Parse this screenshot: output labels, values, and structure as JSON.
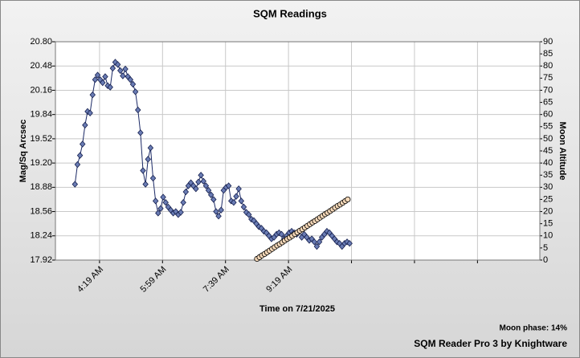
{
  "chart_data": {
    "type": "line",
    "title": "SQM Readings",
    "xlabel": "Time on 7/21/2025",
    "ylabel": "Mag/Sq Arcsec",
    "y2label": "Moon Altitude",
    "footer_phase": "Moon phase: 14%",
    "footer_credit": "SQM Reader Pro 3 by Knightware",
    "xlim": [
      189,
      958
    ],
    "xticks": [
      {
        "value": 259,
        "label": "4:19 AM"
      },
      {
        "value": 359,
        "label": "5:59 AM"
      },
      {
        "value": 459,
        "label": "7:39 AM"
      },
      {
        "value": 559,
        "label": "9:19 AM"
      }
    ],
    "xminor_ticks": [
      659,
      759,
      859
    ],
    "ylim": [
      17.92,
      20.8
    ],
    "yticks": [
      17.92,
      18.24,
      18.56,
      18.88,
      {
        "value": 19.2,
        "label": "19.20"
      },
      19.52,
      19.84,
      20.16,
      20.48,
      {
        "value": 20.8,
        "label": "20.80"
      }
    ],
    "y2lim": [
      0,
      90
    ],
    "y2ticks": [
      0,
      5,
      10,
      15,
      20,
      25,
      30,
      35,
      40,
      45,
      50,
      55,
      60,
      65,
      70,
      75,
      80,
      85,
      90
    ],
    "grid": true,
    "series": [
      {
        "name": "SQM",
        "color": "#6a7cb4",
        "marker": "diamond",
        "x": [
          220,
          224,
          228,
          232,
          236,
          240,
          244,
          248,
          252,
          256,
          260,
          264,
          268,
          272,
          276,
          280,
          284,
          288,
          292,
          296,
          300,
          304,
          308,
          312,
          316,
          320,
          324,
          328,
          332,
          336,
          340,
          344,
          348,
          352,
          356,
          360,
          364,
          368,
          372,
          376,
          380,
          384,
          388,
          392,
          396,
          400,
          404,
          408,
          412,
          416,
          420,
          424,
          428,
          432,
          436,
          440,
          444,
          448,
          452,
          456,
          460,
          464,
          468,
          472,
          476,
          480,
          484,
          488,
          492,
          496,
          500,
          504,
          508,
          512,
          516,
          520,
          524,
          528,
          532,
          536,
          540,
          544,
          548,
          552,
          556,
          560,
          564,
          568,
          572,
          576,
          580,
          584,
          588,
          592,
          596,
          600,
          604,
          608,
          612,
          616,
          620,
          624,
          628,
          632,
          636,
          640,
          644,
          648,
          652,
          656
        ],
        "values": [
          18.92,
          19.18,
          19.3,
          19.45,
          19.7,
          19.88,
          19.86,
          20.1,
          20.3,
          20.36,
          20.3,
          20.26,
          20.34,
          20.22,
          20.2,
          20.45,
          20.53,
          20.5,
          20.42,
          20.35,
          20.44,
          20.34,
          20.3,
          20.24,
          20.14,
          19.9,
          19.6,
          19.1,
          18.92,
          19.25,
          19.4,
          19.0,
          18.7,
          18.54,
          18.6,
          18.75,
          18.68,
          18.62,
          18.58,
          18.54,
          18.56,
          18.52,
          18.55,
          18.68,
          18.82,
          18.9,
          18.94,
          18.9,
          18.86,
          18.95,
          19.04,
          18.96,
          18.9,
          18.84,
          18.78,
          18.72,
          18.56,
          18.5,
          18.58,
          18.84,
          18.88,
          18.9,
          18.7,
          18.68,
          18.76,
          18.86,
          18.7,
          18.62,
          18.55,
          18.52,
          18.46,
          18.44,
          18.4,
          18.36,
          18.34,
          18.3,
          18.28,
          18.24,
          18.2,
          18.22,
          18.26,
          18.28,
          18.26,
          18.2,
          18.24,
          18.28,
          18.3,
          18.28,
          18.26,
          18.3,
          18.22,
          18.26,
          18.22,
          18.18,
          18.2,
          18.16,
          18.1,
          18.16,
          18.22,
          18.26,
          18.3,
          18.28,
          18.24,
          18.2,
          18.16,
          18.14,
          18.1,
          18.14,
          18.16,
          18.14
        ]
      },
      {
        "name": "Moon Altitude",
        "color": "#f5d8b8",
        "marker": "circle",
        "axis": "y2",
        "x": [
          509,
          513,
          517,
          521,
          525,
          529,
          533,
          537,
          541,
          545,
          549,
          553,
          557,
          561,
          565,
          569,
          573,
          577,
          581,
          585,
          589,
          593,
          597,
          601,
          605,
          609,
          613,
          617,
          621,
          625,
          629,
          633,
          637,
          641,
          645,
          649,
          653
        ],
        "values": [
          0.5,
          1.2,
          1.9,
          2.5,
          3.2,
          3.9,
          4.6,
          5.3,
          6.0,
          6.6,
          7.3,
          8.0,
          8.7,
          9.3,
          10.0,
          10.7,
          11.4,
          12.1,
          12.7,
          13.4,
          14.1,
          14.8,
          15.5,
          16.1,
          16.8,
          17.5,
          18.2,
          18.9,
          19.5,
          20.2,
          20.9,
          21.6,
          22.3,
          22.9,
          23.6,
          24.3,
          25.0
        ]
      }
    ]
  }
}
